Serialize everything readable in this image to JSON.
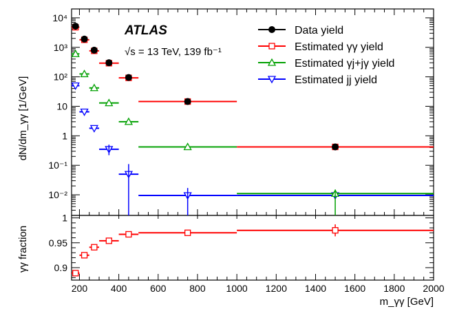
{
  "chart_data": [
    {
      "type": "scatter",
      "panel": "upper",
      "title": "",
      "annotation_experiment": "ATLAS",
      "annotation_energy": "√s = 13 TeV, 139 fb⁻¹",
      "ylabel": "dN/dm_γγ [1/GeV]",
      "xlabel": "",
      "xlim": [
        160,
        2000
      ],
      "ylim": [
        0.002,
        20000
      ],
      "yscale": "log",
      "legend_position": "top-right",
      "y_tick_labels": [
        "10⁴",
        "10³",
        "10²",
        "10",
        "1",
        "10⁻¹",
        "10⁻²"
      ],
      "bins": [
        [
          160,
          200
        ],
        [
          200,
          250
        ],
        [
          250,
          300
        ],
        [
          300,
          400
        ],
        [
          400,
          500
        ],
        [
          500,
          1000
        ],
        [
          1000,
          2000
        ]
      ],
      "series": [
        {
          "name": "Data yield",
          "marker": "filled-circle",
          "color": "#000000",
          "values": [
            5200,
            1900,
            800,
            300,
            95,
            14.5,
            0.42
          ]
        },
        {
          "name": "Estimated γγ yield",
          "marker": "open-square",
          "color": "#ff0000",
          "values": [
            4800,
            1800,
            760,
            290,
            92,
            14.5,
            0.42
          ]
        },
        {
          "name": "Estimated γj+jγ yield",
          "marker": "open-triangle-up",
          "color": "#00a000",
          "values": [
            600,
            125,
            42,
            13,
            3.0,
            0.42,
            0.011
          ]
        },
        {
          "name": "Estimated jj yield",
          "marker": "open-triangle-down",
          "color": "#0000ff",
          "values": [
            50,
            6.5,
            1.8,
            0.35,
            0.05,
            0.0095,
            0.0095
          ]
        }
      ]
    },
    {
      "type": "scatter",
      "panel": "lower",
      "ylabel": "γγ fraction",
      "xlabel": "m_γγ [GeV]",
      "xlim": [
        160,
        2000
      ],
      "ylim": [
        0.875,
        1.005
      ],
      "x_tick_labels": [
        "200",
        "400",
        "600",
        "800",
        "1000",
        "1200",
        "1400",
        "1600",
        "1800",
        "2000"
      ],
      "y_tick_labels": [
        "1",
        "0.95",
        "0.9"
      ],
      "series": [
        {
          "name": "γγ fraction",
          "marker": "open-square",
          "color": "#ff0000",
          "values": [
            0.889,
            0.925,
            0.941,
            0.954,
            0.967,
            0.97,
            0.975
          ]
        }
      ]
    }
  ]
}
